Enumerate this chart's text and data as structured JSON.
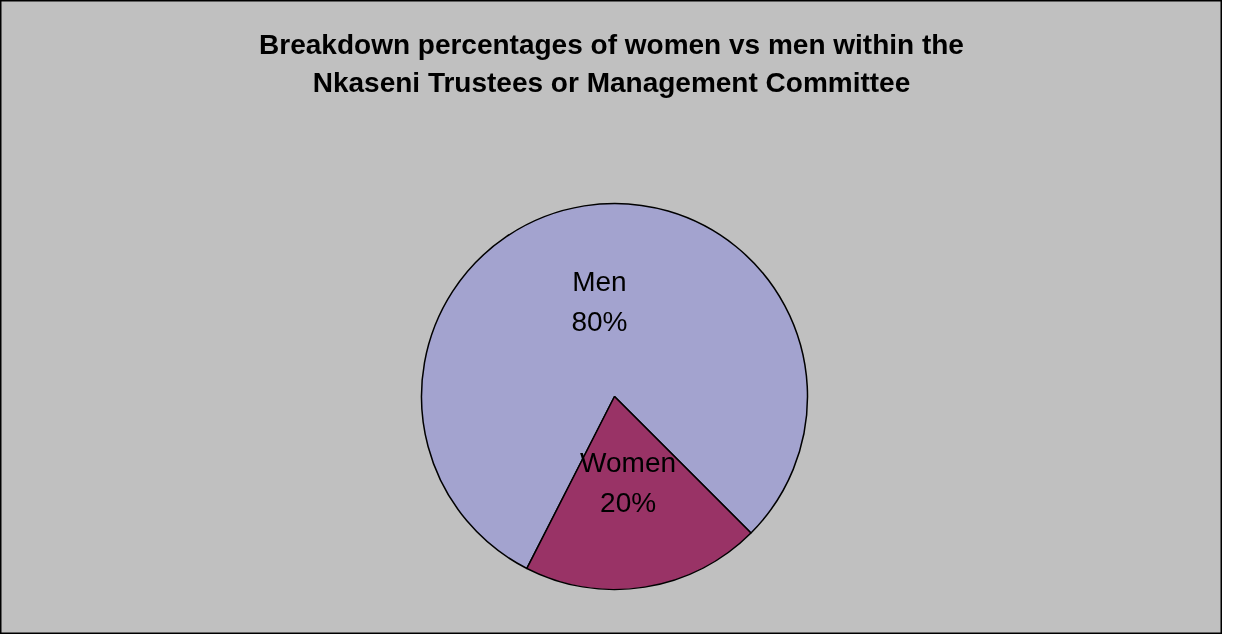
{
  "chart_data": {
    "type": "pie",
    "title": "Breakdown percentages of women vs men within the\nNkaseni Trustees or Management Committee",
    "categories": [
      "Men",
      "Women"
    ],
    "values": [
      80,
      20
    ],
    "colors": [
      "#a3a3cf",
      "#993366"
    ],
    "value_labels": [
      "80%",
      "20%"
    ]
  }
}
